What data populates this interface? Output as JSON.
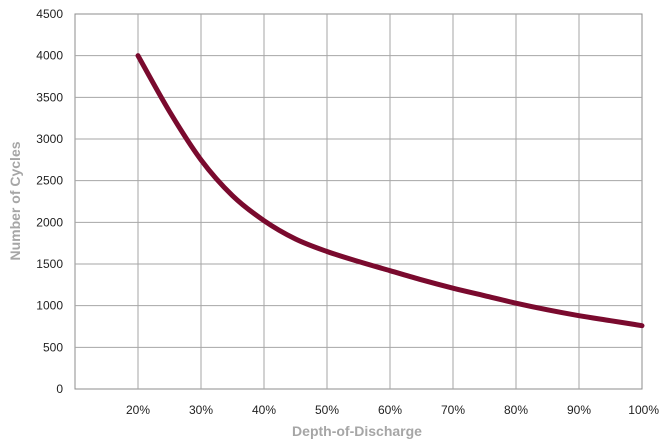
{
  "chart_data": {
    "type": "line",
    "title": "",
    "xlabel": "Depth-of-Discharge",
    "ylabel": "Number of Cycles",
    "x_ticks": [
      "20%",
      "30%",
      "40%",
      "50%",
      "60%",
      "70%",
      "80%",
      "90%",
      "100%"
    ],
    "y_ticks": [
      "0",
      "500",
      "1000",
      "1500",
      "2000",
      "2500",
      "3000",
      "3500",
      "4000",
      "4500"
    ],
    "xlim": [
      10,
      100
    ],
    "ylim": [
      0,
      4500
    ],
    "grid": true,
    "legend": "none",
    "series": [
      {
        "color": "#7a0a2e",
        "x": [
          20,
          25,
          30,
          35,
          40,
          45,
          50,
          55,
          60,
          65,
          70,
          75,
          80,
          85,
          90,
          95,
          100
        ],
        "y": [
          4000,
          3330,
          2750,
          2320,
          2020,
          1800,
          1650,
          1530,
          1420,
          1310,
          1210,
          1120,
          1030,
          950,
          880,
          820,
          760
        ]
      }
    ]
  }
}
